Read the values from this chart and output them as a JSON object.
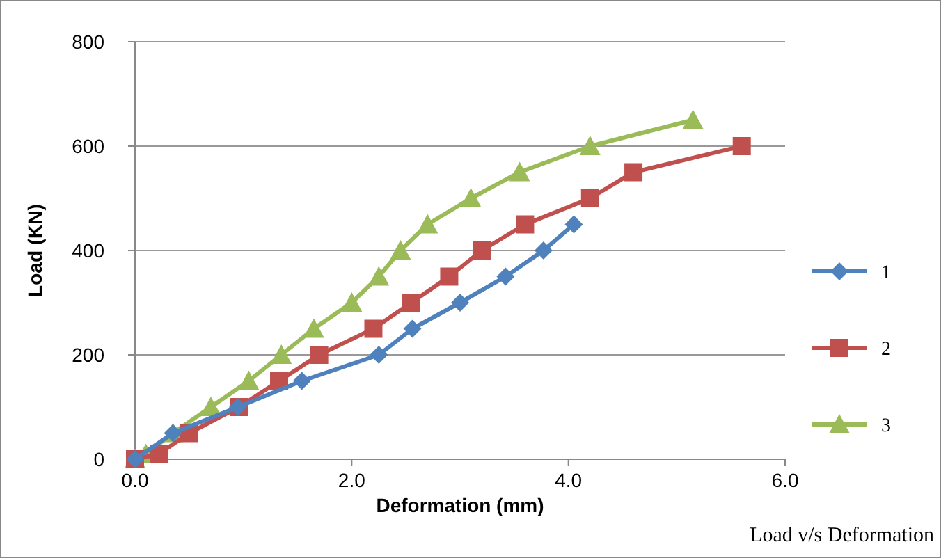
{
  "chart_data": {
    "type": "line",
    "xlabel": "Deformation (mm)",
    "ylabel": "Load (KN)",
    "annotations": [
      "Load v/s Deformation"
    ],
    "xlim": [
      0,
      6
    ],
    "xticks": [
      {
        "value": 0,
        "label": "0.0"
      },
      {
        "value": 2,
        "label": "2.0"
      },
      {
        "value": 4,
        "label": "4.0"
      },
      {
        "value": 6,
        "label": "6.0"
      }
    ],
    "ylim": [
      0,
      800
    ],
    "yticks": [
      0,
      200,
      400,
      600,
      800
    ],
    "grid": "y",
    "legend": "right",
    "line_style": "solid",
    "series": [
      {
        "name": "1",
        "color": "#4f81bd",
        "marker": "diamond",
        "x": [
          0,
          0.35,
          0.95,
          1.54,
          2.25,
          2.56,
          3.0,
          3.42,
          3.77,
          4.05
        ],
        "values": [
          0,
          50,
          100,
          150,
          200,
          250,
          300,
          350,
          400,
          450
        ]
      },
      {
        "name": "2",
        "color": "#c0504d",
        "marker": "square",
        "x": [
          0,
          0.22,
          0.5,
          0.96,
          1.33,
          1.7,
          2.2,
          2.55,
          2.9,
          3.2,
          3.6,
          4.2,
          4.6,
          5.6
        ],
        "values": [
          0,
          10,
          50,
          100,
          150,
          200,
          250,
          300,
          350,
          400,
          450,
          500,
          550,
          600
        ]
      },
      {
        "name": "3",
        "color": "#9bbb59",
        "marker": "triangle",
        "x": [
          0,
          0.1,
          0.35,
          0.7,
          1.05,
          1.35,
          1.65,
          2.0,
          2.25,
          2.45,
          2.7,
          3.1,
          3.55,
          4.2,
          5.15
        ],
        "values": [
          0,
          10,
          50,
          100,
          150,
          200,
          250,
          300,
          350,
          400,
          450,
          500,
          550,
          600,
          650
        ]
      }
    ]
  }
}
